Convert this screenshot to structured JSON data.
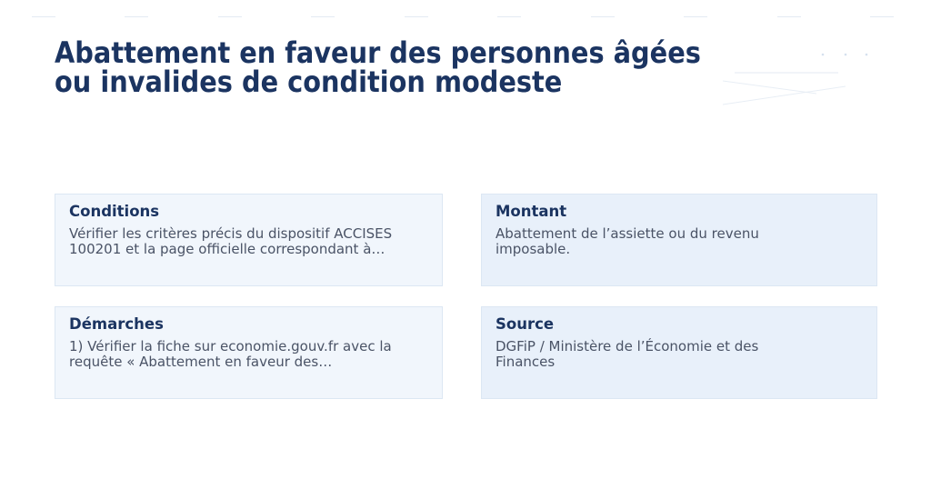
{
  "title_lines": [
    "Abattement en faveur des personnes âgées",
    "ou invalides de condition modeste"
  ],
  "cards": [
    {
      "heading": "Conditions",
      "body": "Vérifier les critères précis du dispositif ACCISES 100201 et la page officielle correspondant à…"
    },
    {
      "heading": "Montant",
      "body": "Abattement de l’assiette ou du revenu imposable."
    },
    {
      "heading": "Démarches",
      "body": "1) Vérifier la fiche sur economie.gouv.fr avec la requête « Abattement en faveur des…"
    },
    {
      "heading": "Source",
      "body": "DGFiP / Ministère de l’Économie et des Finances"
    }
  ],
  "colors": {
    "title": "#1b3461",
    "card_left_bg": "#f1f6fc",
    "card_right_bg": "#e8f0fa",
    "body_text": "#4a5366"
  }
}
